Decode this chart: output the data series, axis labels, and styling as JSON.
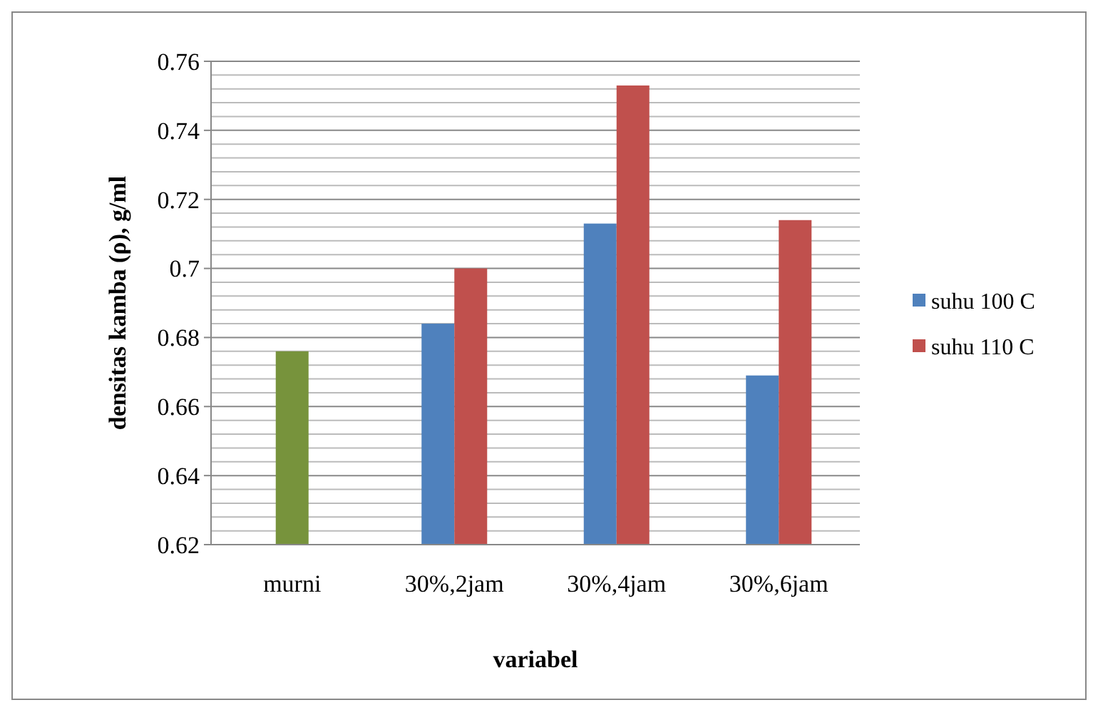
{
  "chart_data": {
    "type": "bar",
    "xlabel": "variabel",
    "ylabel": "densitas kamba (ρ), g/ml",
    "categories": [
      "murni",
      "30%,2jam",
      "30%,4jam",
      "30%,6jam"
    ],
    "series": [
      {
        "name": "suhu 100 C",
        "color": "#4f81bd",
        "values": [
          null,
          0.684,
          0.713,
          0.669
        ]
      },
      {
        "name": "suhu 110 C",
        "color": "#c0504d",
        "values": [
          null,
          0.7,
          0.753,
          0.714
        ]
      },
      {
        "color": "#77933c",
        "values": [
          0.676,
          null,
          null,
          null
        ]
      }
    ],
    "ylim": [
      0.62,
      0.76
    ],
    "yticks": [
      0.62,
      0.64,
      0.66,
      0.68,
      0.7,
      0.72,
      0.74,
      0.76
    ],
    "grid": true,
    "legend": "right"
  }
}
